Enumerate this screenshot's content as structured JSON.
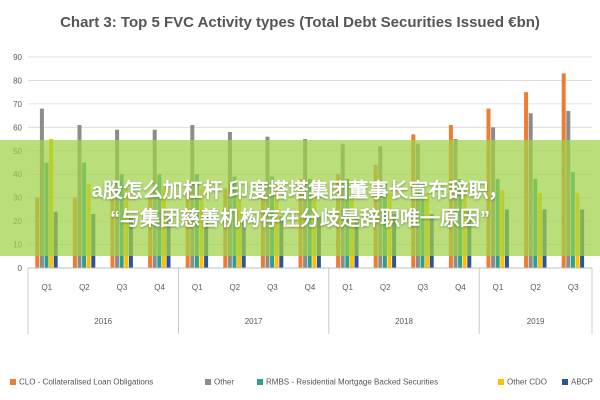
{
  "chart_data": {
    "type": "bar",
    "title": "Chart 3: Top 5 FVC Activity types (Total Debt Securities Issued €bn)",
    "xlabel": "",
    "ylabel": "",
    "ylim": [
      0,
      90
    ],
    "yticks": [
      "0",
      "10",
      "20",
      "30",
      "40",
      "50",
      "60",
      "70",
      "80",
      "90"
    ],
    "grid": true,
    "legend_position": "bottom",
    "categories": [
      "Q1",
      "Q2",
      "Q3",
      "Q4",
      "Q1",
      "Q2",
      "Q3",
      "Q4",
      "Q1",
      "Q2",
      "Q3",
      "Q4",
      "Q1",
      "Q2",
      "Q3"
    ],
    "years": [
      {
        "label": "2016",
        "quarters": 4
      },
      {
        "label": "2017",
        "quarters": 4
      },
      {
        "label": "2018",
        "quarters": 4
      },
      {
        "label": "2019",
        "quarters": 3
      }
    ],
    "series": [
      {
        "name": "CLO - Collateralised Loan Obligations",
        "color": "#ed7d31",
        "values": [
          30,
          30,
          30,
          31,
          32,
          34,
          36,
          38,
          40,
          44,
          57,
          61,
          68,
          75,
          83
        ]
      },
      {
        "name": "Other",
        "color": "#8c8c8c",
        "values": [
          68,
          61,
          59,
          59,
          61,
          58,
          56,
          55,
          53,
          52,
          53,
          55,
          60,
          66,
          67
        ]
      },
      {
        "name": "RMBS - Residential Mortgage Backed Securities",
        "color": "#2e9e8f",
        "values": [
          45,
          45,
          40,
          40,
          40,
          39,
          39,
          38,
          38,
          37,
          37,
          38,
          38,
          38,
          41
        ]
      },
      {
        "name": "Other CDO",
        "color": "#ffc000",
        "values": [
          55,
          36,
          34,
          34,
          34,
          34,
          33,
          33,
          32,
          32,
          32,
          33,
          33,
          32,
          32
        ]
      },
      {
        "name": "ABCP",
        "color": "#2f5597",
        "values": [
          24,
          23,
          22,
          22,
          22,
          22,
          22,
          22,
          22,
          23,
          23,
          24,
          25,
          25,
          25
        ]
      }
    ]
  },
  "overlay": {
    "line1": "a股怎么加杠杆 印度塔塔集团董事长宣布辞职，",
    "line2": "“与集团慈善机构存在分歧是辞职唯一原因”"
  }
}
